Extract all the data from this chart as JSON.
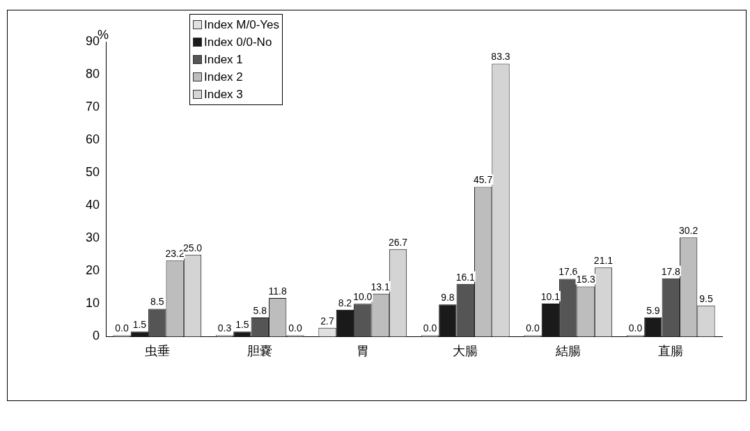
{
  "chart_data": {
    "type": "bar",
    "ylabel": "%",
    "categories": [
      "虫垂",
      "胆嚢",
      "胃",
      "大腸",
      "結腸",
      "直腸"
    ],
    "series": [
      {
        "name": "Index M/0-Yes",
        "color": "#e0e0e0",
        "values": [
          0.0,
          0.3,
          2.7,
          0.0,
          0.0,
          0.0
        ],
        "value_labels": [
          "0.0",
          "0.3",
          "2.7",
          "0.0",
          "0.0",
          "0.0"
        ]
      },
      {
        "name": "Index 0/0-No",
        "color": "#1a1a1a",
        "values": [
          1.5,
          1.5,
          8.2,
          9.8,
          10.1,
          5.9
        ],
        "value_labels": [
          "1.5",
          "1.5",
          "8.2",
          "9.8",
          "10.1",
          "5.9"
        ]
      },
      {
        "name": "Index 1",
        "color": "#555555",
        "values": [
          8.5,
          5.8,
          10.0,
          16.1,
          17.6,
          17.8
        ],
        "value_labels": [
          "8.5",
          "5.8",
          "10.0",
          "16.1",
          "17.6",
          "17.8"
        ]
      },
      {
        "name": "Index 2",
        "color": "#bdbdbd",
        "values": [
          23.2,
          11.8,
          13.1,
          45.7,
          15.3,
          30.2
        ],
        "value_labels": [
          "23.2",
          "11.8",
          "13.1",
          "45.7",
          "15.3",
          "30.2"
        ]
      },
      {
        "name": "Index 3",
        "color": "#d4d4d4",
        "values": [
          25.0,
          0.0,
          26.7,
          83.3,
          21.1,
          9.5
        ],
        "value_labels": [
          "25.0",
          "0.0",
          "26.7",
          "83.3",
          "21.1",
          "9.5"
        ]
      }
    ],
    "ylim": [
      0,
      90
    ],
    "yticks": [
      0,
      10,
      20,
      30,
      40,
      50,
      60,
      70,
      80,
      90
    ],
    "grid": false,
    "legend": "top left"
  }
}
